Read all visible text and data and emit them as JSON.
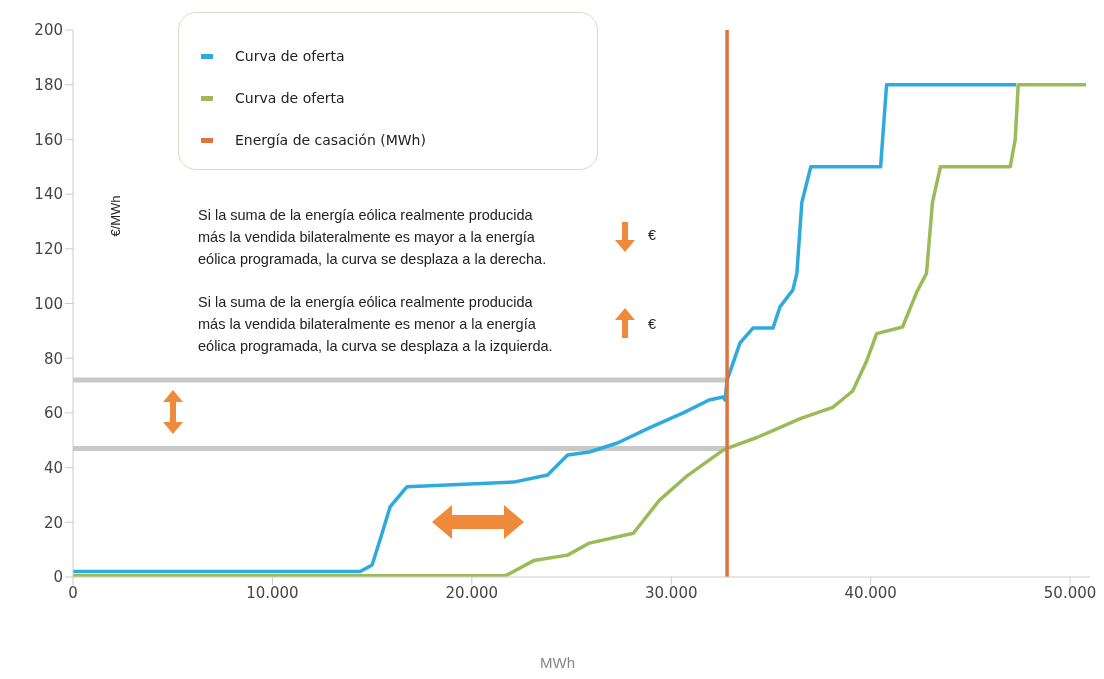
{
  "chart_data": {
    "type": "line",
    "xlabel": "MWh",
    "ylabel": "€/MWh",
    "xlim": [
      0,
      51000
    ],
    "ylim": [
      0,
      200
    ],
    "xticks": [
      {
        "value": 0,
        "label": "0"
      },
      {
        "value": 10000,
        "label": "10.000"
      },
      {
        "value": 20000,
        "label": "20.000"
      },
      {
        "value": 30000,
        "label": "30.000"
      },
      {
        "value": 40000,
        "label": "40.000"
      },
      {
        "value": 50000,
        "label": "50.000"
      }
    ],
    "yticks": [
      0,
      20,
      40,
      60,
      80,
      100,
      120,
      140,
      160,
      180,
      200
    ],
    "legend": "top left",
    "series": [
      {
        "color": "#c8c8c8",
        "x": [
          0,
          32800
        ],
        "values": [
          72,
          72
        ]
      },
      {
        "color": "#c8c8c8",
        "x": [
          0,
          32800
        ],
        "values": [
          47,
          47
        ]
      },
      {
        "name": "Curva de oferta",
        "color": "#2eaadc",
        "x": [
          0,
          14400,
          15000,
          15500,
          15900,
          16750,
          22100,
          23800,
          24800,
          25900,
          27300,
          28900,
          30600,
          31900,
          32600,
          32700,
          32800,
          33450,
          34100,
          35100,
          35450,
          36100,
          36300,
          36550,
          37000,
          40500,
          40600,
          40800,
          47300
        ],
        "values": [
          2,
          2,
          4.4,
          16,
          25.6,
          33,
          34.7,
          37.3,
          44.6,
          45.7,
          49,
          54.5,
          60,
          64.7,
          65.8,
          64.7,
          72,
          85.6,
          91,
          91,
          98.7,
          105,
          111,
          137,
          150,
          150,
          160,
          180,
          180
        ]
      },
      {
        "name": "Curva de oferta",
        "color": "#9bbb59",
        "x": [
          0,
          21700,
          23100,
          24800,
          25900,
          28100,
          29400,
          30800,
          32600,
          32800,
          34300,
          36500,
          38100,
          39100,
          39800,
          40300,
          41600,
          42300,
          42800,
          43100,
          43500,
          47000,
          47250,
          47400,
          50800
        ],
        "values": [
          0.5,
          0.5,
          6,
          8,
          12.4,
          16,
          28,
          37,
          46.4,
          47,
          51,
          58,
          62,
          68,
          79,
          89,
          91.4,
          104,
          111,
          137,
          150,
          150,
          160,
          180,
          180
        ]
      },
      {
        "name": "Energía de casación (MWh)",
        "color": "#e0733a",
        "x": [
          32800,
          32800
        ],
        "values": [
          0,
          200
        ]
      }
    ],
    "annotations": [
      "Si la suma de la energía eólica realmente producida más la vendida bilateralmente es mayor a la energía eólica programada, la curva se desplaza a la derecha.",
      "€",
      "Si la suma de la energía eólica realmente producida más la vendida bilateralmente es menor a la energía eólica programada, la curva se desplaza a  la izquierda.",
      "€"
    ]
  }
}
